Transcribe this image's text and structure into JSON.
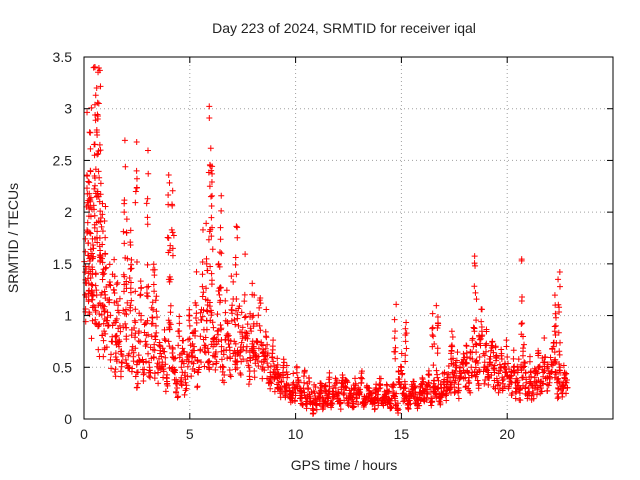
{
  "chart_data": {
    "type": "scatter",
    "title": "Day 223 of 2024, SRMTID for receiver iqal",
    "xlabel": "GPS time / hours",
    "ylabel": "SRMTID / TECUs",
    "xlim": [
      0,
      25
    ],
    "ylim": [
      0,
      3.5
    ],
    "x_ticks": [
      0,
      5,
      10,
      15,
      20
    ],
    "x_tick_labels": [
      "0",
      "5",
      "10",
      "15",
      "20"
    ],
    "y_ticks": [
      0,
      0.5,
      1,
      1.5,
      2,
      2.5,
      3,
      3.5
    ],
    "y_tick_labels": [
      "0",
      "0.5",
      "1",
      "1.5",
      "2",
      "2.5",
      "3",
      "3.5"
    ],
    "grid": true,
    "marker": "+",
    "color": "#ff0000",
    "series": [
      {
        "name": "SRMTID",
        "x": [
          0.05,
          0.1,
          0.15,
          0.2,
          0.25,
          0.3,
          0.35,
          0.4,
          0.45,
          0.5,
          0.55,
          0.6,
          0.65,
          0.7,
          0.75,
          0.8,
          0.85,
          0.9,
          0.95,
          1.0,
          1.1,
          1.2,
          1.3,
          1.4,
          1.5,
          1.6,
          1.7,
          1.8,
          1.9,
          2.0,
          2.1,
          2.2,
          2.3,
          2.4,
          2.5,
          2.6,
          2.7,
          2.8,
          2.9,
          3.0,
          3.1,
          3.2,
          3.3,
          3.4,
          3.5,
          3.6,
          3.7,
          3.8,
          3.9,
          4.0,
          4.1,
          4.2,
          4.3,
          4.4,
          4.5,
          4.6,
          4.7,
          4.8,
          4.9,
          5.0,
          5.1,
          5.2,
          5.3,
          5.4,
          5.5,
          5.6,
          5.7,
          5.8,
          5.9,
          6.0,
          6.1,
          6.2,
          6.3,
          6.4,
          6.5,
          6.6,
          6.7,
          6.8,
          6.9,
          7.0,
          7.1,
          7.2,
          7.3,
          7.4,
          7.5,
          7.6,
          7.7,
          7.8,
          7.9,
          8.0,
          8.1,
          8.2,
          8.3,
          8.4,
          8.5,
          8.6,
          8.7,
          8.8,
          8.9,
          9.0,
          9.1,
          9.2,
          9.3,
          9.4,
          9.5,
          9.6,
          9.7,
          9.8,
          9.9,
          10.0,
          10.1,
          10.2,
          10.3,
          10.4,
          10.5,
          10.6,
          10.7,
          10.8,
          10.9,
          11.0,
          11.1,
          11.2,
          11.3,
          11.4,
          11.5,
          11.6,
          11.7,
          11.8,
          11.9,
          12.0,
          12.1,
          12.2,
          12.3,
          12.4,
          12.5,
          12.6,
          12.7,
          12.8,
          12.9,
          13.0,
          13.1,
          13.2,
          13.3,
          13.4,
          13.5,
          13.6,
          13.7,
          13.8,
          13.9,
          14.0,
          14.1,
          14.2,
          14.3,
          14.4,
          14.5,
          14.6,
          14.7,
          14.8,
          14.9,
          15.0,
          15.1,
          15.2,
          15.3,
          15.4,
          15.5,
          15.6,
          15.7,
          15.8,
          15.9,
          16.0,
          16.1,
          16.2,
          16.3,
          16.4,
          16.5,
          16.6,
          16.7,
          16.8,
          16.9,
          17.0,
          17.1,
          17.2,
          17.3,
          17.4,
          17.5,
          17.6,
          17.7,
          17.8,
          17.9,
          18.0,
          18.1,
          18.2,
          18.3,
          18.4,
          18.5,
          18.6,
          18.7,
          18.8,
          18.9,
          19.0,
          19.1,
          19.2,
          19.3,
          19.4,
          19.5,
          19.6,
          19.7,
          19.8,
          19.9,
          20.0,
          20.1,
          20.2,
          20.3,
          20.4,
          20.5,
          20.6,
          20.7,
          20.8,
          20.9,
          21.0,
          21.1,
          21.2,
          21.3,
          21.4,
          21.5,
          21.6,
          21.7,
          21.8,
          21.9,
          22.0,
          22.1,
          22.2,
          22.3,
          22.4,
          22.5,
          22.6,
          22.7,
          22.8,
          0.3,
          0.6,
          0.65,
          0.7,
          0.75,
          0.5,
          1.9,
          2.05,
          2.45,
          3.0,
          4.0,
          5.95,
          6.0,
          6.05,
          5.8,
          6.45,
          0.2,
          0.4,
          1.0,
          1.5,
          2.2,
          3.3,
          4.2,
          7.2,
          8.0,
          18.5,
          20.7,
          22.3,
          22.45,
          14.7,
          15.2,
          16.5,
          16.7,
          17.4
        ],
        "y": [
          1.2,
          1.45,
          2.35,
          1.7,
          1.55,
          2.1,
          1.3,
          0.95,
          1.65,
          2.35,
          1.05,
          1.9,
          2.2,
          0.9,
          1.75,
          1.2,
          1.55,
          1.1,
          0.85,
          1.6,
          0.95,
          1.15,
          0.75,
          1.25,
          0.6,
          1.05,
          0.9,
          0.55,
          1.3,
          0.8,
          0.5,
          1.1,
          0.7,
          0.95,
          0.45,
          0.85,
          1.0,
          0.55,
          0.75,
          0.95,
          0.5,
          0.8,
          0.6,
          0.9,
          0.45,
          0.7,
          0.55,
          0.65,
          0.4,
          0.75,
          1.35,
          0.6,
          0.45,
          0.3,
          0.8,
          0.5,
          0.65,
          0.35,
          0.6,
          0.9,
          0.55,
          0.7,
          1.1,
          0.45,
          0.8,
          1.4,
          0.65,
          0.95,
          0.5,
          1.05,
          0.75,
          0.6,
          0.85,
          1.2,
          0.7,
          0.5,
          0.95,
          0.8,
          0.6,
          1.1,
          0.75,
          0.55,
          0.9,
          0.65,
          0.8,
          1.2,
          0.7,
          0.5,
          0.85,
          1.0,
          0.6,
          0.75,
          0.9,
          0.55,
          0.65,
          0.8,
          0.5,
          0.45,
          0.6,
          0.4,
          0.5,
          0.35,
          0.3,
          0.45,
          0.25,
          0.4,
          0.3,
          0.2,
          0.35,
          0.25,
          0.4,
          0.3,
          0.2,
          0.35,
          0.15,
          0.3,
          0.2,
          0.1,
          0.25,
          0.15,
          0.2,
          0.3,
          0.15,
          0.25,
          0.2,
          0.35,
          0.15,
          0.25,
          0.3,
          0.2,
          0.15,
          0.35,
          0.25,
          0.3,
          0.2,
          0.25,
          0.15,
          0.3,
          0.2,
          0.25,
          0.35,
          0.15,
          0.2,
          0.3,
          0.25,
          0.2,
          0.15,
          0.25,
          0.2,
          0.3,
          0.15,
          0.2,
          0.25,
          0.2,
          0.15,
          0.25,
          0.2,
          0.1,
          0.35,
          0.5,
          0.25,
          0.3,
          0.15,
          0.2,
          0.25,
          0.3,
          0.2,
          0.15,
          0.25,
          0.3,
          0.2,
          0.25,
          0.35,
          0.2,
          0.3,
          0.25,
          0.4,
          0.2,
          0.3,
          0.35,
          0.25,
          0.4,
          0.3,
          0.45,
          0.35,
          0.5,
          0.3,
          0.4,
          0.55,
          0.45,
          0.6,
          0.35,
          0.5,
          0.7,
          0.55,
          0.45,
          0.6,
          0.8,
          0.5,
          0.65,
          0.4,
          0.55,
          0.75,
          0.45,
          0.6,
          0.35,
          0.5,
          0.3,
          0.45,
          0.6,
          0.4,
          0.35,
          0.5,
          0.3,
          0.45,
          0.25,
          0.4,
          0.55,
          0.35,
          0.3,
          0.45,
          0.25,
          0.4,
          0.35,
          0.5,
          0.3,
          0.45,
          0.6,
          0.4,
          0.35,
          0.55,
          0.7,
          0.45,
          0.3,
          0.5,
          0.25,
          0.4,
          0.35,
          2.4,
          3.2,
          2.9,
          3.05,
          2.65,
          2.55,
          2.0,
          1.55,
          2.2,
          1.95,
          1.75,
          2.25,
          2.15,
          1.85,
          1.5,
          1.85,
          1.7,
          1.55,
          1.2,
          0.95,
          1.45,
          1.3,
          1.65,
          1.4,
          0.7,
          1.22,
          1.18,
          0.9,
          1.08,
          0.85,
          0.75,
          0.8,
          0.88,
          0.7
        ]
      }
    ]
  }
}
